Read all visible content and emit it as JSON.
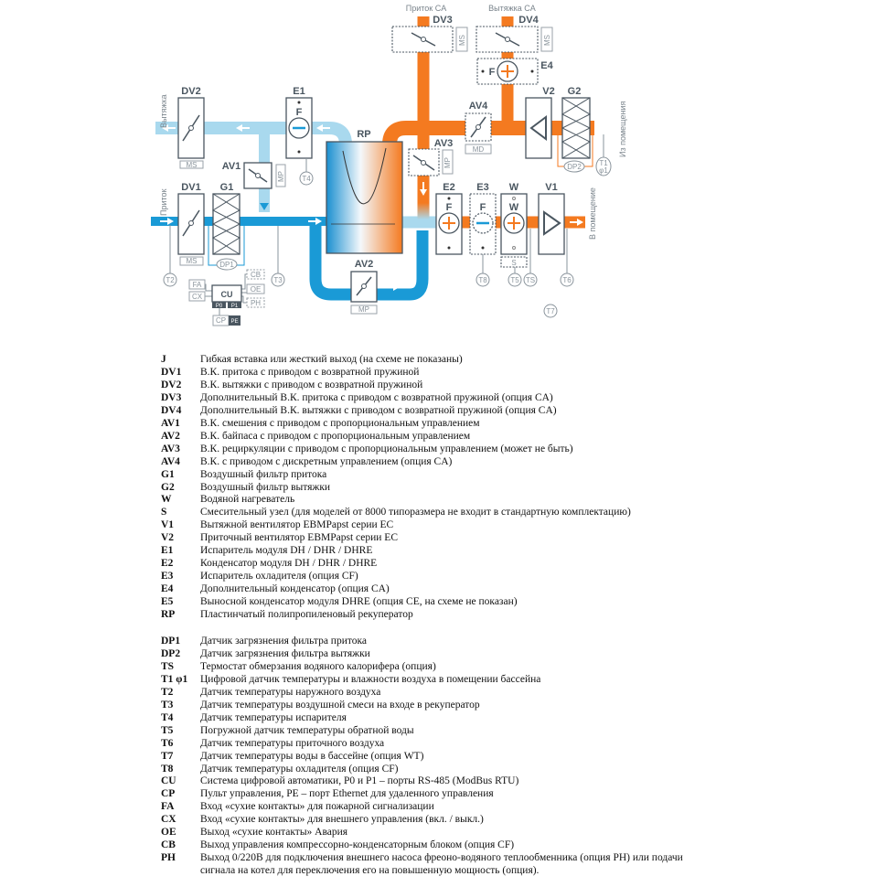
{
  "diagram": {
    "flow_labels": {
      "supply_ca": "Приток CA",
      "exhaust_ca": "Вытяжка CA",
      "exhaust": "Вытяжка",
      "supply": "Приток",
      "from_room": "Из помещения",
      "to_room": "В помещение"
    },
    "components": {
      "DV1": "DV1",
      "DV2": "DV2",
      "DV3": "DV3",
      "DV4": "DV4",
      "AV1": "AV1",
      "AV2": "AV2",
      "AV3": "AV3",
      "AV4": "AV4",
      "G1": "G1",
      "G2": "G2",
      "E1": "E1",
      "E2": "E2",
      "E3": "E3",
      "E4": "E4",
      "W": "W",
      "V1": "V1",
      "V2": "V2",
      "RP": "RP",
      "S": "S",
      "CU": "CU"
    },
    "actuators": {
      "MS": "MS",
      "MP": "MP",
      "MD": "MD",
      "F": "F",
      "W": "W"
    },
    "sensors": {
      "T1": "T1",
      "phi1": "φ1",
      "T2": "T2",
      "T3": "T3",
      "T4": "T4",
      "T5": "T5",
      "T6": "T6",
      "T7": "T7",
      "T8": "T8",
      "TS": "TS",
      "DP1": "DP1",
      "DP2": "DP2"
    },
    "io": {
      "FA": "FA",
      "CX": "CX",
      "CB": "CB",
      "OE": "OE",
      "PH": "PH",
      "P0": "P0",
      "P1": "P1",
      "CP": "CP",
      "PE": "PE"
    },
    "colors": {
      "warm": "#f47a20",
      "cold": "#1a9ad6",
      "exhaust": "#a9d9ee",
      "lines": "#4a5660"
    }
  },
  "legend": [
    {
      "code": "J",
      "text": "Гибкая вставка или жесткий выход (на схеме не показаны)"
    },
    {
      "code": "DV1",
      "text": "В.К. притока с приводом с возвратной пружиной"
    },
    {
      "code": "DV2",
      "text": "В.К. вытяжки с приводом с возвратной пружиной"
    },
    {
      "code": "DV3",
      "text": "Дополнительный В.К. притока с приводом с возвратной пружиной (опция CA)"
    },
    {
      "code": "DV4",
      "text": "Дополнительный В.К. вытяжки с приводом с возвратной пружиной (опция CA)"
    },
    {
      "code": "AV1",
      "text": "В.К. смешения с приводом с пропорциональным управлением"
    },
    {
      "code": "AV2",
      "text": "В.К. байпаса с приводом с пропорциональным управлением"
    },
    {
      "code": "AV3",
      "text": "В.К. рециркуляции с приводом с пропорциональным управлением (может не быть)"
    },
    {
      "code": "AV4",
      "text": "В.К. с приводом с дискретным управлением (опция CA)"
    },
    {
      "code": "G1",
      "text": "Воздушный фильтр притока"
    },
    {
      "code": "G2",
      "text": "Воздушный фильтр вытяжки"
    },
    {
      "code": "W",
      "text": "Водяной нагреватель"
    },
    {
      "code": "S",
      "text": "Смесительный узел (для моделей от 8000 типоразмера не входит в стандартную комплектацию)"
    },
    {
      "code": "V1",
      "text": "Вытяжной вентилятор EBMPapst серии EC"
    },
    {
      "code": "V2",
      "text": "Приточный вентилятор EBMPapst серии EC"
    },
    {
      "code": "E1",
      "text": "Испаритель модуля DH / DHR / DHRE"
    },
    {
      "code": "E2",
      "text": "Конденсатор модуля DH / DHR / DHRE"
    },
    {
      "code": "E3",
      "text": "Испаритель охладителя (опция CF)"
    },
    {
      "code": "E4",
      "text": "Дополнительный конденсатор (опция CA)"
    },
    {
      "code": "E5",
      "text": "Выносной конденсатор модуля DHRE (опция CE, на схеме не показан)"
    },
    {
      "code": "RP",
      "text": "Пластинчатый полипропиленовый рекуператор"
    }
  ],
  "legend2": [
    {
      "code": "DP1",
      "text": "Датчик загрязнения фильтра притока"
    },
    {
      "code": "DP2",
      "text": "Датчик загрязнения фильтра вытяжки"
    },
    {
      "code": "TS",
      "text": "Термостат обмерзания водяного калорифера (опция)"
    },
    {
      "code": "T1 φ1",
      "text": "Цифровой датчик температуры и влажности воздуха в помещении бассейна"
    },
    {
      "code": "T2",
      "text": "Датчик температуры наружного воздуха"
    },
    {
      "code": "T3",
      "text": "Датчик температуры воздушной смеси на входе в рекуператор"
    },
    {
      "code": "T4",
      "text": "Датчик температуры испарителя"
    },
    {
      "code": "T5",
      "text": "Погружной датчик температуры обратной воды"
    },
    {
      "code": "T6",
      "text": "Датчик температуры приточного воздуха"
    },
    {
      "code": "T7",
      "text": "Датчик температуры воды в бассейне (опция WT)"
    },
    {
      "code": "T8",
      "text": "Датчик температуры охладителя (опция CF)"
    },
    {
      "code": "CU",
      "text": "Система цифровой автоматики, P0 и P1 – порты RS-485 (ModBus RTU)"
    },
    {
      "code": "CP",
      "text": "Пульт управления, PE – порт Ethernet для удаленного управления"
    },
    {
      "code": "FA",
      "text": "Вход «сухие контакты» для пожарной сигнализации"
    },
    {
      "code": "CX",
      "text": "Вход  «сухие контакты» для внешнего управления (вкл. / выкл.)"
    },
    {
      "code": "OE",
      "text": "Выход «сухие контакты» Авария"
    },
    {
      "code": "CB",
      "text": "Выход управления компрессорно-конденсаторным блоком (опция CF)"
    },
    {
      "code": "PH",
      "text": "Выход 0/220В для подключения внешнего насоса фреоно-водяного теплообменника (опция PH) или подачи",
      "text2": "сигнала на котел для переключения его на повышенную мощность (опция)."
    }
  ]
}
